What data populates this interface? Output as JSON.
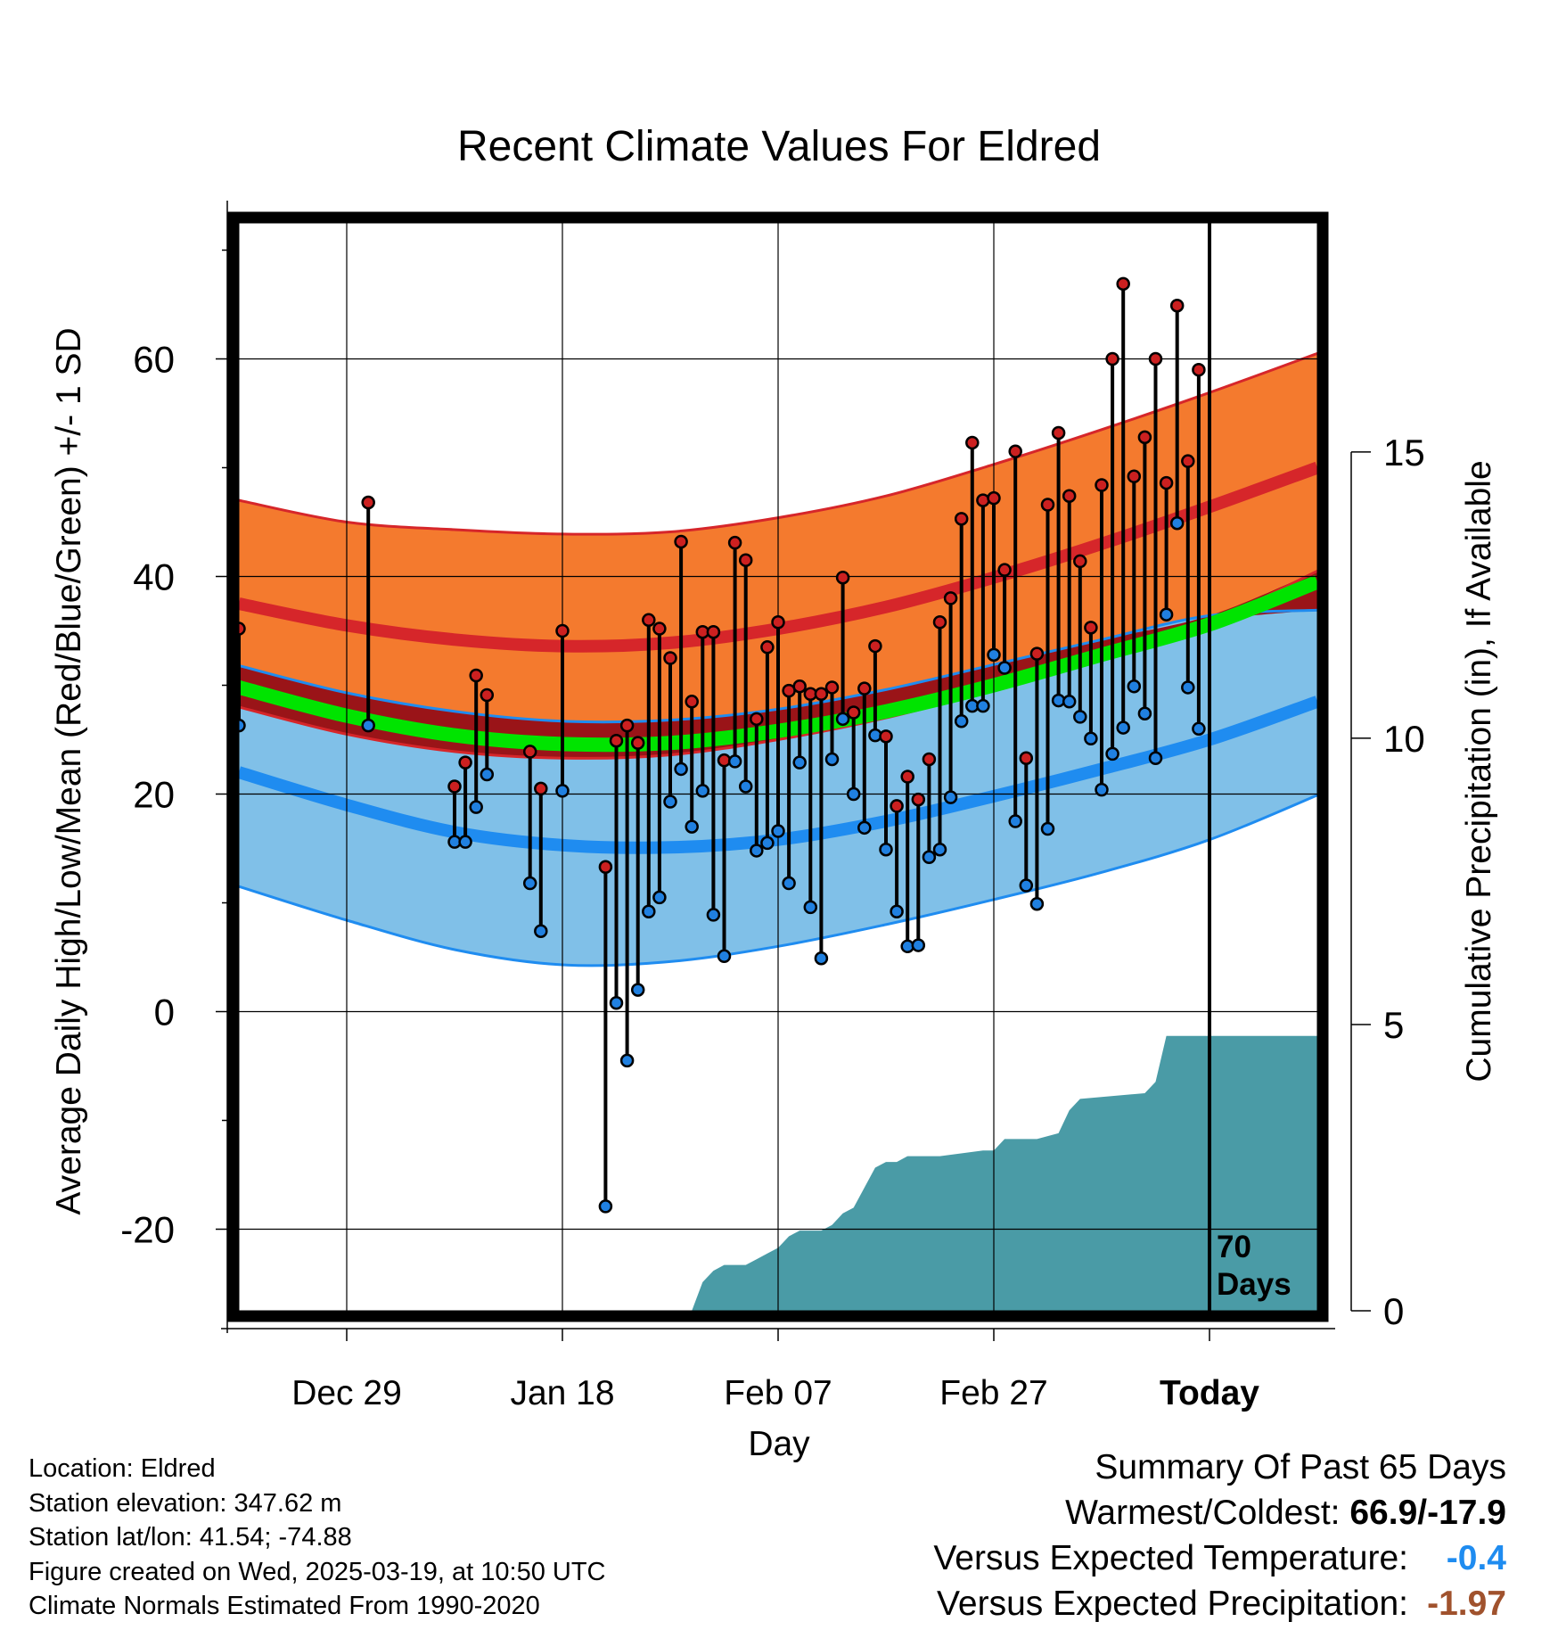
{
  "chart_data": {
    "type": "line",
    "title": "Recent Climate Values For Eldred",
    "xlabel": "Day",
    "ylabel": "Average Daily High/Low/Mean (Red/Blue/Green) +/- 1 SD",
    "y2label": "Cumulative Precipitation (in), If Available",
    "x_start_date": "2024-12-19",
    "x_end_date": "2025-03-29",
    "today_date": "2025-03-19",
    "ylim": [
      -27.5,
      72.5
    ],
    "y2lim": [
      0,
      19
    ],
    "yticks": [
      -20,
      0,
      20,
      40,
      60
    ],
    "ytick_labels": [
      "-20",
      "0",
      "20",
      "40",
      "60"
    ],
    "y2ticks": [
      0,
      5,
      10,
      15
    ],
    "y2tick_labels": [
      "0",
      "5",
      "10",
      "15"
    ],
    "xticks": [
      "2024-12-29",
      "2025-01-18",
      "2025-02-07",
      "2025-02-27",
      "2025-03-19"
    ],
    "xtick_labels": [
      "Dec 29",
      "Jan 18",
      "Feb 07",
      "Feb 27",
      "Today"
    ],
    "today_label": "Today",
    "days_label_line1": "70",
    "days_label_line2": "Days",
    "colors": {
      "normal_high_band": "#f47a2e",
      "normal_high_line": "#d6262a",
      "normal_low_band": "#80c0e8",
      "normal_low_line": "#1f8cf0",
      "normal_mean_line": "#00e400",
      "mean_overlap_band": "#9a1418",
      "observed_high_point": "#cc2020",
      "observed_low_point": "#2080e0",
      "precip_fill": "#4a9ba6"
    },
    "normals": {
      "dates": [
        "2024-12-19",
        "2024-12-29",
        "2025-01-08",
        "2025-01-18",
        "2025-01-28",
        "2025-02-07",
        "2025-02-17",
        "2025-02-27",
        "2025-03-09",
        "2025-03-19",
        "2025-03-29"
      ],
      "high_mean": [
        37.5,
        35.5,
        34.2,
        33.6,
        33.9,
        35.2,
        37.2,
        39.9,
        43.0,
        46.4,
        50.0
      ],
      "high_upper": [
        47.0,
        45.0,
        44.3,
        43.9,
        44.1,
        45.4,
        47.4,
        50.3,
        53.5,
        56.9,
        60.5
      ],
      "high_lower": [
        28.0,
        25.5,
        23.9,
        23.3,
        23.6,
        25.0,
        27.0,
        29.6,
        32.5,
        35.8,
        40.5
      ],
      "low_mean": [
        22.0,
        19.0,
        16.5,
        15.3,
        15.1,
        15.8,
        17.5,
        19.8,
        22.3,
        25.0,
        28.5
      ],
      "low_upper": [
        31.8,
        29.3,
        27.6,
        26.7,
        26.8,
        27.8,
        29.6,
        31.9,
        34.2,
        36.4,
        36.9
      ],
      "low_lower": [
        11.5,
        8.4,
        5.7,
        4.3,
        4.6,
        6.0,
        8.0,
        10.3,
        12.8,
        15.8,
        19.9
      ],
      "mean": [
        29.8,
        27.2,
        25.4,
        24.6,
        24.7,
        25.8,
        27.6,
        30.0,
        32.8,
        35.6,
        39.5
      ]
    },
    "observed": {
      "dates": [
        "2024-12-19",
        "2024-12-31",
        "2025-01-08",
        "2025-01-09",
        "2025-01-10",
        "2025-01-11",
        "2025-01-15",
        "2025-01-16",
        "2025-01-18",
        "2025-01-22",
        "2025-01-23",
        "2025-01-24",
        "2025-01-25",
        "2025-01-26",
        "2025-01-27",
        "2025-01-28",
        "2025-01-29",
        "2025-01-30",
        "2025-01-31",
        "2025-02-01",
        "2025-02-02",
        "2025-02-03",
        "2025-02-04",
        "2025-02-05",
        "2025-02-06",
        "2025-02-07",
        "2025-02-08",
        "2025-02-09",
        "2025-02-10",
        "2025-02-11",
        "2025-02-12",
        "2025-02-13",
        "2025-02-14",
        "2025-02-15",
        "2025-02-16",
        "2025-02-17",
        "2025-02-18",
        "2025-02-19",
        "2025-02-20",
        "2025-02-21",
        "2025-02-22",
        "2025-02-23",
        "2025-02-24",
        "2025-02-25",
        "2025-02-26",
        "2025-02-27",
        "2025-02-28",
        "2025-03-01",
        "2025-03-02",
        "2025-03-03",
        "2025-03-04",
        "2025-03-05",
        "2025-03-06",
        "2025-03-07",
        "2025-03-08",
        "2025-03-09",
        "2025-03-10",
        "2025-03-11",
        "2025-03-12",
        "2025-03-13",
        "2025-03-14",
        "2025-03-15",
        "2025-03-16",
        "2025-03-17",
        "2025-03-18"
      ],
      "high": [
        35.2,
        46.8,
        20.7,
        22.9,
        30.9,
        29.1,
        23.9,
        20.5,
        35.0,
        13.3,
        24.9,
        26.3,
        24.7,
        36.0,
        35.2,
        32.5,
        43.2,
        28.5,
        34.9,
        34.9,
        23.1,
        43.1,
        41.5,
        26.9,
        33.5,
        35.8,
        29.5,
        29.9,
        29.2,
        29.2,
        29.8,
        39.9,
        27.5,
        29.7,
        33.6,
        25.3,
        18.9,
        21.6,
        19.5,
        23.2,
        35.8,
        38.0,
        45.3,
        52.3,
        47.0,
        47.2,
        40.6,
        51.5,
        23.3,
        32.9,
        46.6,
        53.2,
        47.4,
        41.4,
        35.3,
        48.4,
        60.0,
        66.9,
        49.2,
        52.8,
        60.0,
        48.6,
        64.9,
        50.6,
        59.0
      ],
      "low": [
        26.3,
        26.3,
        15.6,
        15.6,
        18.8,
        21.8,
        11.8,
        7.4,
        20.3,
        -17.9,
        0.8,
        -4.5,
        2.0,
        9.2,
        10.5,
        19.3,
        22.3,
        17.0,
        20.3,
        8.9,
        5.1,
        23.0,
        20.7,
        14.8,
        15.5,
        16.6,
        11.8,
        22.9,
        9.6,
        4.9,
        23.2,
        26.9,
        20.0,
        16.9,
        25.4,
        14.9,
        9.2,
        6.0,
        6.1,
        14.2,
        14.9,
        19.7,
        26.7,
        28.1,
        28.1,
        32.8,
        31.6,
        17.5,
        11.6,
        9.9,
        16.8,
        28.6,
        28.5,
        27.1,
        25.1,
        20.4,
        23.7,
        26.1,
        29.9,
        27.4,
        23.3,
        36.5,
        44.9,
        29.8,
        26.0
      ]
    },
    "precip_cumulative": {
      "dates": [
        "2025-01-30",
        "2025-01-31",
        "2025-02-01",
        "2025-02-02",
        "2025-02-04",
        "2025-02-05",
        "2025-02-06",
        "2025-02-07",
        "2025-02-08",
        "2025-02-09",
        "2025-02-11",
        "2025-02-12",
        "2025-02-13",
        "2025-02-14",
        "2025-02-16",
        "2025-02-17",
        "2025-02-18",
        "2025-02-19",
        "2025-02-22",
        "2025-02-26",
        "2025-02-27",
        "2025-02-28",
        "2025-03-02",
        "2025-03-03",
        "2025-03-05",
        "2025-03-06",
        "2025-03-07",
        "2025-03-13",
        "2025-03-14",
        "2025-03-15",
        "2025-03-29"
      ],
      "values": [
        0.0,
        0.5,
        0.7,
        0.8,
        0.8,
        0.9,
        1.0,
        1.1,
        1.3,
        1.4,
        1.4,
        1.5,
        1.7,
        1.8,
        2.5,
        2.6,
        2.6,
        2.7,
        2.7,
        2.8,
        2.8,
        3.0,
        3.0,
        3.0,
        3.1,
        3.5,
        3.7,
        3.8,
        4.0,
        4.8,
        4.8
      ]
    }
  },
  "footer": {
    "location": "Location: Eldred",
    "elevation": "Station elevation: 347.62 m",
    "latlon": "Station lat/lon: 41.54; -74.88",
    "created": "Figure created on Wed, 2025-03-19, at 10:50 UTC",
    "normals": "Climate Normals Estimated From 1990-2020"
  },
  "summary": {
    "title": "Summary Of Past 65 Days",
    "warmest_label": "Warmest/Coldest: ",
    "warmest_value": "66.9/-17.9",
    "temp_label": "Versus Expected Temperature:",
    "temp_value": "-0.4",
    "temp_color": "#1f8cf0",
    "precip_label": "Versus Expected Precipitation:",
    "precip_value": "-1.97",
    "precip_color": "#a0522d"
  }
}
